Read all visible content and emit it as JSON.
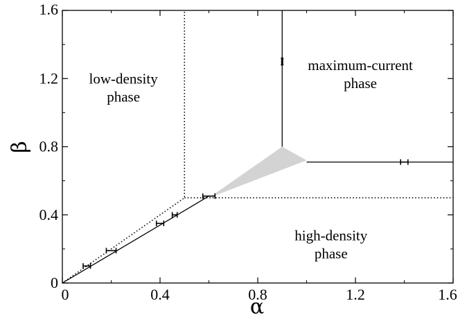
{
  "chart_data": {
    "type": "line",
    "title": "",
    "xlabel": "α",
    "ylabel": "β",
    "xlim": [
      0,
      1.6
    ],
    "ylim": [
      0,
      1.6
    ],
    "xticks": [
      "0",
      "0.4",
      "0.8",
      "1.2",
      "1.6"
    ],
    "yticks": [
      "0",
      "0.4",
      "0.8",
      "1.2",
      "1.6"
    ],
    "grid": false,
    "regions": [
      {
        "label_lines": [
          "low-density",
          "phase"
        ],
        "x": 0.25,
        "y": 1.17
      },
      {
        "label_lines": [
          "maximum-current",
          "phase"
        ],
        "x": 1.22,
        "y": 1.25
      },
      {
        "label_lines": [
          "high-density",
          "phase"
        ],
        "x": 1.1,
        "y": 0.25
      }
    ],
    "series": [
      {
        "style": "solid",
        "x": [
          0,
          0.6
        ],
        "y": [
          0,
          0.51
        ]
      },
      {
        "style": "solid",
        "x": [
          0.9,
          0.9
        ],
        "y": [
          0.8,
          1.6
        ]
      },
      {
        "style": "solid",
        "x": [
          1.0,
          1.6
        ],
        "y": [
          0.71,
          0.71
        ]
      },
      {
        "style": "dotted",
        "x": [
          0,
          0.5,
          0.5
        ],
        "y": [
          0,
          0.5,
          1.6
        ]
      },
      {
        "style": "dotted",
        "x": [
          0.5,
          1.6
        ],
        "y": [
          0.5,
          0.5
        ]
      }
    ],
    "shaded_region": {
      "color": "#d3d3d3",
      "x": [
        0.6,
        0.9,
        1.0
      ],
      "y": [
        0.5,
        0.8,
        0.72
      ]
    },
    "error_bars": [
      {
        "x": 0.1,
        "y": 0.1,
        "orientation": "horizontal",
        "err": 0.015
      },
      {
        "x": 0.2,
        "y": 0.19,
        "orientation": "horizontal",
        "err": 0.02
      },
      {
        "x": 0.4,
        "y": 0.35,
        "orientation": "horizontal",
        "err": 0.015
      },
      {
        "x": 0.46,
        "y": 0.4,
        "orientation": "horizontal",
        "err": 0.01
      },
      {
        "x": 0.6,
        "y": 0.51,
        "orientation": "horizontal",
        "err": 0.025
      },
      {
        "x": 0.9,
        "y": 1.3,
        "orientation": "vertical",
        "err": 0.02
      },
      {
        "x": 1.4,
        "y": 0.71,
        "orientation": "horizontal",
        "err": 0.015
      }
    ]
  }
}
